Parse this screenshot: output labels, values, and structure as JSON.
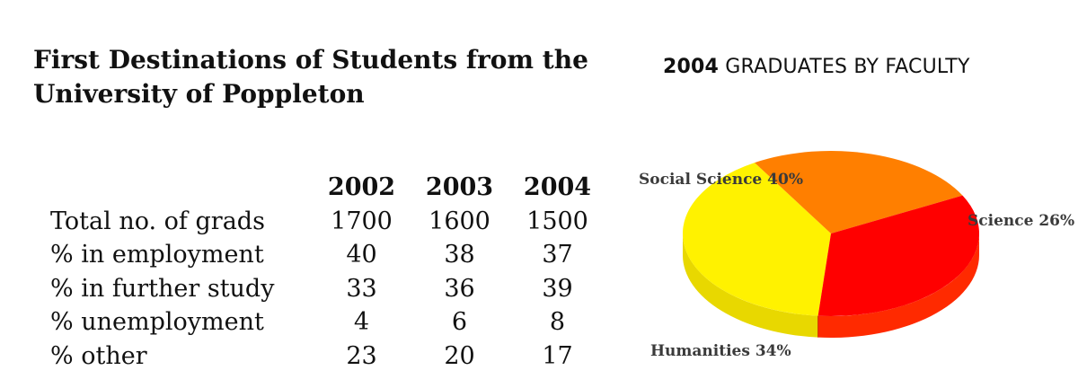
{
  "table": {
    "title_lines": [
      "First Destinations of Students from the",
      "University of Poppleton"
    ],
    "years": [
      "2002",
      "2003",
      "2004"
    ],
    "rows": [
      {
        "label": "Total no. of grads",
        "values": [
          "1700",
          "1600",
          "1500"
        ]
      },
      {
        "label": "% in employment",
        "values": [
          "40",
          "38",
          "37"
        ]
      },
      {
        "label": "% in further study",
        "values": [
          "33",
          "36",
          "39"
        ]
      },
      {
        "label": "% unemployment",
        "values": [
          "4",
          "6",
          "8"
        ]
      },
      {
        "label": "% other",
        "values": [
          "23",
          "20",
          "17"
        ]
      }
    ]
  },
  "chart_data": [
    {
      "type": "table",
      "title": "First Destinations of Students from the University of Poppleton",
      "columns": [
        "2002",
        "2003",
        "2004"
      ],
      "rows": [
        "Total no. of grads",
        "% in employment",
        "% in further study",
        "% unemployment",
        "% other"
      ],
      "values": [
        [
          1700,
          1600,
          1500
        ],
        [
          40,
          38,
          37
        ],
        [
          33,
          36,
          39
        ],
        [
          4,
          6,
          8
        ],
        [
          23,
          20,
          17
        ]
      ]
    },
    {
      "type": "pie",
      "title": "2004 GRADUATES BY FACULTY",
      "title_parts": [
        "2004",
        " GRADUATES BY FACULTY"
      ],
      "style": "3d",
      "slices": [
        {
          "label": "Social Science",
          "value": 40,
          "text": "Social Science 40%",
          "color": "#fff200",
          "side": "#e8d800"
        },
        {
          "label": "Science",
          "value": 26,
          "text": "Science 26%",
          "color": "#ff7f00",
          "side": "#ff8a00"
        },
        {
          "label": "Humanities",
          "value": 34,
          "text": "Humanities 34%",
          "color": "#ff0000",
          "side": "#ff2a00"
        }
      ]
    }
  ]
}
